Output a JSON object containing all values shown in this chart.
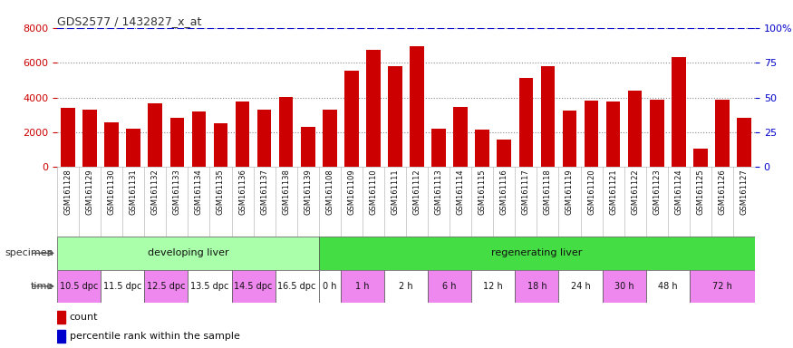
{
  "title": "GDS2577 / 1432827_x_at",
  "samples": [
    "GSM161128",
    "GSM161129",
    "GSM161130",
    "GSM161131",
    "GSM161132",
    "GSM161133",
    "GSM161134",
    "GSM161135",
    "GSM161136",
    "GSM161137",
    "GSM161138",
    "GSM161139",
    "GSM161108",
    "GSM161109",
    "GSM161110",
    "GSM161111",
    "GSM161112",
    "GSM161113",
    "GSM161114",
    "GSM161115",
    "GSM161116",
    "GSM161117",
    "GSM161118",
    "GSM161119",
    "GSM161120",
    "GSM161121",
    "GSM161122",
    "GSM161123",
    "GSM161124",
    "GSM161125",
    "GSM161126",
    "GSM161127"
  ],
  "counts": [
    3400,
    3300,
    2550,
    2200,
    3650,
    2850,
    3200,
    2500,
    3750,
    3300,
    4050,
    2300,
    3300,
    5550,
    6750,
    5800,
    6950,
    2200,
    3450,
    2150,
    1600,
    5100,
    5800,
    3250,
    3800,
    3750,
    4400,
    3850,
    6300,
    1050,
    3850,
    2850
  ],
  "bar_color": "#cc0000",
  "percentile_color": "#0000cc",
  "ylim_left": [
    0,
    8000
  ],
  "ylim_right": [
    0,
    100
  ],
  "yticks_left": [
    0,
    2000,
    4000,
    6000,
    8000
  ],
  "yticks_right": [
    0,
    25,
    50,
    75,
    100
  ],
  "specimen_groups": [
    {
      "label": "developing liver",
      "start": 0,
      "end": 12,
      "color": "#aaffaa"
    },
    {
      "label": "regenerating liver",
      "start": 12,
      "end": 32,
      "color": "#44dd44"
    }
  ],
  "time_groups": [
    {
      "label": "10.5 dpc",
      "start": 0,
      "end": 2,
      "color": "#ee88ee"
    },
    {
      "label": "11.5 dpc",
      "start": 2,
      "end": 4,
      "color": "#ffffff"
    },
    {
      "label": "12.5 dpc",
      "start": 4,
      "end": 6,
      "color": "#ee88ee"
    },
    {
      "label": "13.5 dpc",
      "start": 6,
      "end": 8,
      "color": "#ffffff"
    },
    {
      "label": "14.5 dpc",
      "start": 8,
      "end": 10,
      "color": "#ee88ee"
    },
    {
      "label": "16.5 dpc",
      "start": 10,
      "end": 12,
      "color": "#ffffff"
    },
    {
      "label": "0 h",
      "start": 12,
      "end": 13,
      "color": "#ffffff"
    },
    {
      "label": "1 h",
      "start": 13,
      "end": 15,
      "color": "#ee88ee"
    },
    {
      "label": "2 h",
      "start": 15,
      "end": 17,
      "color": "#ffffff"
    },
    {
      "label": "6 h",
      "start": 17,
      "end": 19,
      "color": "#ee88ee"
    },
    {
      "label": "12 h",
      "start": 19,
      "end": 21,
      "color": "#ffffff"
    },
    {
      "label": "18 h",
      "start": 21,
      "end": 23,
      "color": "#ee88ee"
    },
    {
      "label": "24 h",
      "start": 23,
      "end": 25,
      "color": "#ffffff"
    },
    {
      "label": "30 h",
      "start": 25,
      "end": 27,
      "color": "#ee88ee"
    },
    {
      "label": "48 h",
      "start": 27,
      "end": 29,
      "color": "#ffffff"
    },
    {
      "label": "72 h",
      "start": 29,
      "end": 32,
      "color": "#ee88ee"
    }
  ],
  "specimen_label": "specimen",
  "time_label": "time",
  "legend_count_label": "count",
  "legend_pct_label": "percentile rank within the sample",
  "bg_color": "#ffffff",
  "tick_label_color_left": "#cc0000",
  "tick_label_color_right": "#0000cc",
  "grid_color": "#000000",
  "xticklabel_bg": "#cccccc"
}
